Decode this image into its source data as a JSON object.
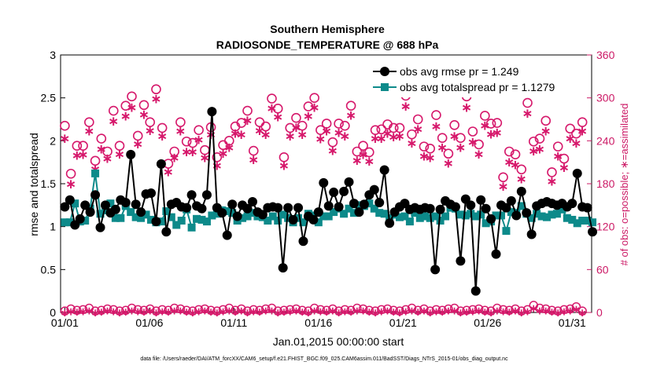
{
  "chart_data": {
    "type": "line",
    "title": "Southern Hemisphere",
    "subtitle": "RADIOSONDE_TEMPERATURE @ 688 hPa",
    "xlabel": "Jan.01,2015 00:00:00 start",
    "ylabel": "rmse and totalspread",
    "ylabel_right": "# of obs: o=possible; ∗=assimilated",
    "footnote": "data file: /Users/raeder/DAI/ATM_forcXX/CAM6_setup/f.e21.FHIST_BGC.f09_025.CAM6assim.011/BadSST/Diags_NTrS_2015-01/obs_diag_output.nc",
    "xlim": [
      0.75,
      32.15
    ],
    "ylim": [
      0,
      3
    ],
    "ylim_right": [
      0,
      360
    ],
    "x_ticks": [
      1,
      6,
      11,
      16,
      21,
      26,
      31
    ],
    "x_tick_labels": [
      "01/01",
      "01/06",
      "01/11",
      "01/16",
      "01/21",
      "01/26",
      "01/31"
    ],
    "y_ticks": [
      0,
      0.5,
      1,
      1.5,
      2,
      2.5,
      3
    ],
    "y_tick_labels": [
      "0",
      "0.5",
      "1",
      "1.5",
      "2",
      "2.5",
      "3"
    ],
    "y_ticks_right": [
      0,
      60,
      120,
      180,
      240,
      300,
      360
    ],
    "y_tick_labels_right": [
      "0",
      "60",
      "120",
      "180",
      "240",
      "300",
      "360"
    ],
    "grid": false,
    "legend_position": "top-right",
    "colors": {
      "rmse": "#000000",
      "spread": "#0d8a8a",
      "obs": "#d6186b"
    },
    "series": [
      {
        "name": "obs avg rmse pr = 1.249",
        "marker": "circle",
        "values": [
          1.23,
          1.31,
          1.02,
          1.09,
          1.25,
          1.17,
          1.37,
          0.99,
          1.25,
          1.16,
          1.2,
          1.31,
          1.28,
          1.84,
          1.26,
          1.17,
          1.38,
          1.39,
          1.06,
          1.73,
          0.94,
          1.26,
          1.28,
          1.23,
          1.22,
          1.37,
          1.24,
          1.21,
          1.37,
          2.34,
          1.22,
          1.16,
          0.9,
          1.26,
          1.12,
          1.25,
          1.21,
          1.29,
          1.17,
          1.14,
          1.22,
          1.23,
          1.22,
          0.52,
          1.22,
          1.08,
          1.22,
          0.83,
          1.12,
          1.08,
          1.17,
          1.51,
          1.24,
          1.4,
          1.23,
          1.41,
          1.52,
          1.27,
          1.17,
          1.26,
          1.37,
          1.43,
          1.28,
          1.66,
          1.04,
          1.17,
          1.23,
          1.27,
          1.2,
          1.22,
          1.2,
          1.22,
          1.21,
          0.5,
          1.2,
          1.3,
          1.26,
          1.23,
          0.6,
          1.32,
          1.25,
          0.25,
          1.31,
          1.21,
          1.09,
          0.68,
          1.25,
          1.22,
          1.3,
          1.13,
          1.41,
          1.16,
          0.91,
          1.24,
          1.27,
          1.29,
          1.27,
          1.25,
          1.27,
          1.23,
          1.27,
          1.62,
          1.23,
          1.22,
          0.94
        ],
        "x_start": 1.0,
        "x_step": 0.3
      },
      {
        "name": "obs avg totalspread pr = 1.1279",
        "marker": "square",
        "values": [
          1.05,
          1.05,
          1.27,
          1.06,
          1.07,
          1.21,
          1.62,
          1.15,
          1.19,
          1.27,
          1.1,
          1.1,
          1.24,
          1.17,
          1.11,
          1.1,
          1.14,
          1.08,
          1.05,
          1.06,
          1.18,
          1.11,
          1.02,
          1.07,
          1.2,
          0.99,
          1.09,
          1.08,
          1.06,
          1.13,
          1.15,
          1.19,
          1.18,
          1.16,
          1.07,
          1.1,
          1.12,
          1.16,
          1.12,
          1.11,
          1.07,
          1.12,
          1.07,
          1.14,
          1.1,
          1.05,
          1.1,
          1.05,
          1.15,
          1.13,
          1.05,
          1.12,
          1.12,
          1.17,
          1.21,
          1.15,
          1.21,
          1.16,
          1.25,
          1.24,
          1.27,
          1.21,
          1.16,
          1.15,
          1.1,
          1.14,
          1.11,
          1.12,
          1.06,
          1.16,
          1.1,
          1.12,
          1.1,
          1.12,
          1.07,
          1.12,
          1.22,
          1.21,
          1.14,
          1.13,
          1.15,
          1.12,
          1.14,
          1.04,
          1.06,
          1.13,
          1.13,
          0.95,
          1.17,
          1.16,
          1.24,
          1.15,
          1.1,
          1.15,
          1.12,
          1.11,
          1.14,
          1.15,
          1.2,
          1.1,
          1.08,
          1.04,
          1.07,
          1.07,
          1.05
        ],
        "x_start": 1.0,
        "x_step": 0.3
      }
    ],
    "obs_possible": [
      261,
      194,
      233,
      233,
      266,
      212,
      243,
      225,
      282,
      233,
      289,
      302,
      247,
      290,
      266,
      312,
      258,
      208,
      225,
      266,
      239,
      237,
      255,
      227,
      259,
      217,
      234,
      240,
      260,
      265,
      282,
      226,
      266,
      260,
      299,
      285,
      217,
      258,
      272,
      261,
      288,
      300,
      255,
      264,
      238,
      264,
      261,
      289,
      225,
      233,
      224,
      255,
      256,
      263,
      258,
      258,
      303,
      249,
      270,
      232,
      229,
      276,
      244,
      222,
      262,
      244,
      302,
      253,
      235,
      275,
      264,
      265,
      189,
      225,
      221,
      200,
      293,
      239,
      243,
      268,
      196,
      232,
      215,
      257,
      250,
      266
    ],
    "obs_assimilated": [
      245,
      181,
      221,
      222,
      255,
      202,
      230,
      217,
      269,
      223,
      276,
      288,
      237,
      278,
      256,
      300,
      248,
      198,
      218,
      255,
      226,
      226,
      243,
      218,
      250,
      207,
      224,
      232,
      252,
      250,
      270,
      215,
      256,
      250,
      287,
      275,
      207,
      248,
      260,
      250,
      276,
      288,
      244,
      255,
      228,
      253,
      248,
      277,
      214,
      222,
      213,
      245,
      245,
      252,
      247,
      248,
      290,
      238,
      258,
      220,
      218,
      262,
      232,
      210,
      248,
      232,
      288,
      240,
      223,
      263,
      251,
      253,
      178,
      212,
      208,
      188,
      280,
      227,
      230,
      255,
      185,
      220,
      204,
      245,
      238,
      255
    ],
    "obs_x_start": 1.0,
    "obs_x_step": 0.36,
    "obs_bottom_possible": [
      2,
      5,
      3,
      4,
      6,
      2,
      3,
      5,
      4,
      2,
      3,
      6,
      4,
      3,
      5,
      2,
      4,
      3,
      6,
      5,
      3,
      2,
      4,
      5,
      3,
      2,
      4,
      6,
      3,
      5,
      2,
      4,
      3,
      5,
      6,
      2,
      3,
      4,
      5,
      3,
      2,
      6,
      4,
      3,
      5,
      2,
      4,
      3,
      6,
      5,
      3,
      2,
      4,
      5,
      3,
      2,
      4,
      6,
      3,
      5,
      2,
      4,
      3,
      5,
      6,
      2,
      3,
      4,
      5,
      3,
      2,
      6,
      4,
      3,
      5,
      2,
      4,
      10,
      6,
      5,
      3,
      2,
      4,
      5,
      8,
      2
    ],
    "obs_bottom_assimilated": [
      1,
      3,
      2,
      3,
      4,
      1,
      2,
      4,
      3,
      1,
      2,
      4,
      3,
      2,
      4,
      1,
      3,
      2,
      4,
      4,
      2,
      1,
      3,
      4,
      2,
      1,
      3,
      4,
      2,
      4,
      1,
      3,
      2,
      4,
      4,
      1,
      2,
      3,
      4,
      2,
      1,
      4,
      3,
      2,
      4,
      1,
      3,
      2,
      4,
      4,
      2,
      1,
      3,
      4,
      2,
      1,
      3,
      4,
      2,
      4,
      1,
      3,
      2,
      4,
      4,
      1,
      2,
      3,
      4,
      2,
      1,
      4,
      3,
      2,
      4,
      1,
      3,
      7,
      4,
      4,
      2,
      1,
      3,
      4,
      6,
      1
    ]
  }
}
